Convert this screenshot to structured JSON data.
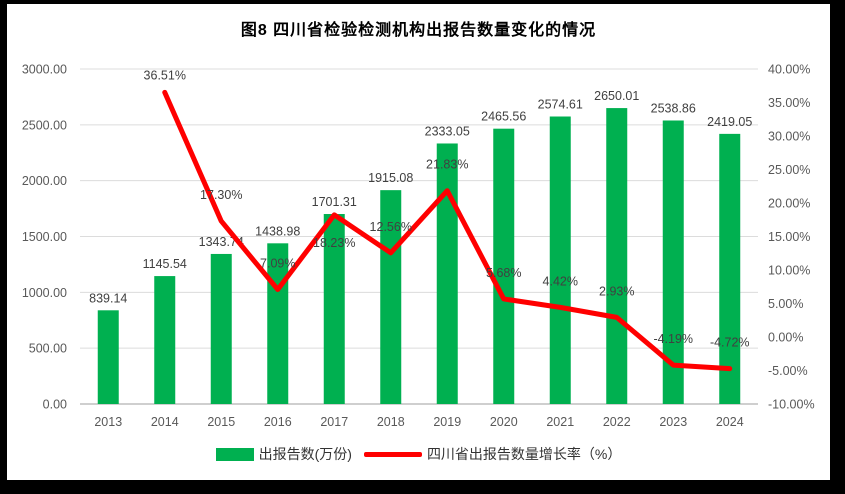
{
  "frame": {
    "border_color": "#000000",
    "background": "#ffffff"
  },
  "chart_data": {
    "type": "bar+line",
    "title": "图8  四川省检验检测机构出报告数量变化的情况",
    "categories": [
      "2013",
      "2014",
      "2015",
      "2016",
      "2017",
      "2018",
      "2019",
      "2020",
      "2021",
      "2022",
      "2023",
      "2024"
    ],
    "series": [
      {
        "name": "出报告数(万份)",
        "type": "bar",
        "axis": "left",
        "color": "#00B050",
        "values": [
          839.14,
          1145.54,
          1343.74,
          1438.98,
          1701.31,
          1915.08,
          2333.05,
          2465.56,
          2574.61,
          2650.01,
          2538.86,
          2419.05
        ],
        "data_labels": [
          "839.14",
          "1145.54",
          "1343.74",
          "1438.98",
          "1701.31",
          "1915.08",
          "2333.05",
          "2465.56",
          "2574.61",
          "2650.01",
          "2538.86",
          "2419.05"
        ]
      },
      {
        "name": "四川省出报告数量增长率（%）",
        "type": "line",
        "axis": "right",
        "color": "#FF0000",
        "values": [
          null,
          36.51,
          17.3,
          7.09,
          18.23,
          12.56,
          21.83,
          5.68,
          4.42,
          2.93,
          -4.19,
          -4.72
        ],
        "data_labels": [
          "",
          "36.51%",
          "17.30%",
          "7.09%",
          "18.23%",
          "12.56%",
          "21.83%",
          "5.68%",
          "4.42%",
          "2.93%",
          "-4.19%",
          "-4.72%"
        ]
      }
    ],
    "left_axis": {
      "min": 0,
      "max": 3000,
      "step": 500,
      "tick_labels_top_to_bottom": [
        "3000.00",
        "2500.00",
        "2000.00",
        "1500.00",
        "1000.00",
        "500.00",
        "0.00"
      ]
    },
    "right_axis": {
      "min": -10,
      "max": 40,
      "step": 5,
      "tick_labels_top_to_bottom": [
        "40.00%",
        "35.00%",
        "30.00%",
        "25.00%",
        "20.00%",
        "15.00%",
        "10.00%",
        "5.00%",
        "0.00%",
        "-5.00%",
        "-10.00%"
      ]
    },
    "grid": true,
    "legend_position": "bottom",
    "colors": {
      "tick_text": "#595959",
      "data_label_text": "#404040",
      "gridline": "#DCDCDC",
      "axis_line": "#BFBFBF"
    },
    "line_label_dy_overrides": {
      "1": -13,
      "4": 32
    }
  }
}
